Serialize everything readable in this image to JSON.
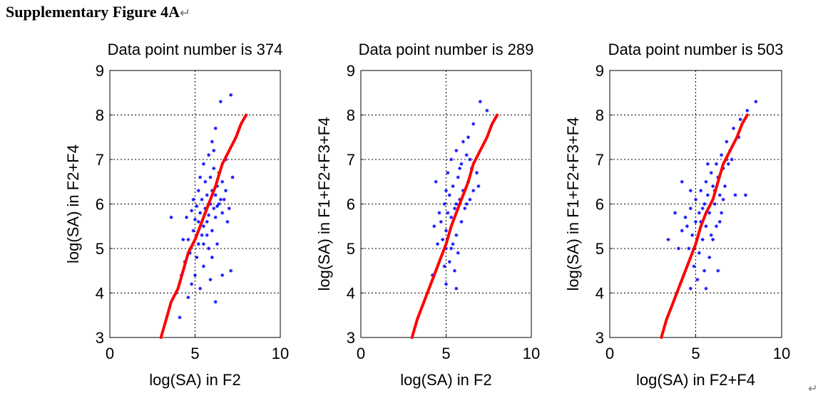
{
  "figure": {
    "title": "Supplementary Figure 4A",
    "paragraph_mark": "↵",
    "end_mark": "↵"
  },
  "chart_data": [
    {
      "type": "scatter",
      "title": "Data point number is 374",
      "xlabel": "log(SA) in F2",
      "ylabel": "log(SA) in F2+F4",
      "xlim": [
        0,
        10
      ],
      "ylim": [
        3,
        9
      ],
      "xticks": [
        0,
        5,
        10
      ],
      "yticks": [
        3,
        4,
        5,
        6,
        7,
        8,
        9
      ],
      "grid": true,
      "marker_color": "#1010ff",
      "line_color": "#ff0000",
      "point_count": 374,
      "points": [
        [
          7.1,
          8.45
        ],
        [
          6.5,
          8.3
        ],
        [
          6.2,
          7.7
        ],
        [
          6.0,
          7.4
        ],
        [
          5.8,
          7.1
        ],
        [
          5.5,
          6.9
        ],
        [
          6.1,
          6.8
        ],
        [
          6.4,
          6.7
        ],
        [
          5.9,
          6.6
        ],
        [
          6.6,
          6.5
        ],
        [
          5.6,
          6.5
        ],
        [
          6.3,
          6.4
        ],
        [
          5.2,
          6.3
        ],
        [
          6.0,
          6.3
        ],
        [
          6.8,
          6.3
        ],
        [
          5.7,
          6.2
        ],
        [
          6.2,
          6.2
        ],
        [
          5.4,
          6.1
        ],
        [
          6.5,
          6.1
        ],
        [
          5.9,
          6.0
        ],
        [
          5.1,
          5.95
        ],
        [
          6.3,
          5.95
        ],
        [
          5.6,
          5.9
        ],
        [
          6.1,
          5.9
        ],
        [
          4.8,
          5.85
        ],
        [
          5.3,
          5.8
        ],
        [
          6.6,
          5.8
        ],
        [
          5.8,
          5.75
        ],
        [
          4.5,
          5.7
        ],
        [
          6.2,
          5.7
        ],
        [
          5.0,
          5.65
        ],
        [
          5.7,
          5.6
        ],
        [
          3.6,
          5.7
        ],
        [
          6.9,
          5.6
        ],
        [
          5.5,
          5.5
        ],
        [
          4.9,
          5.4
        ],
        [
          6.0,
          5.4
        ],
        [
          5.4,
          5.3
        ],
        [
          4.6,
          5.2
        ],
        [
          5.2,
          5.1
        ],
        [
          6.3,
          5.1
        ],
        [
          5.8,
          5.0
        ],
        [
          4.7,
          4.9
        ],
        [
          5.1,
          4.8
        ],
        [
          6.0,
          4.8
        ],
        [
          4.4,
          4.7
        ],
        [
          5.5,
          4.6
        ],
        [
          7.1,
          4.5
        ],
        [
          4.2,
          4.4
        ],
        [
          6.6,
          4.4
        ],
        [
          4.8,
          4.2
        ],
        [
          5.3,
          4.1
        ],
        [
          3.9,
          4.0
        ],
        [
          4.6,
          3.9
        ],
        [
          6.2,
          3.8
        ],
        [
          4.1,
          3.45
        ],
        [
          7.0,
          5.9
        ],
        [
          7.2,
          6.6
        ],
        [
          6.8,
          7.0
        ],
        [
          6.1,
          7.2
        ],
        [
          5.3,
          6.6
        ],
        [
          4.9,
          6.1
        ],
        [
          5.5,
          5.1
        ],
        [
          5.0,
          4.4
        ],
        [
          5.9,
          4.3
        ],
        [
          4.3,
          5.2
        ],
        [
          6.4,
          6.0
        ],
        [
          5.7,
          5.3
        ],
        [
          6.7,
          6.1
        ],
        [
          5.2,
          5.6
        ]
      ],
      "fit_line": [
        [
          3.0,
          3.0
        ],
        [
          3.3,
          3.4
        ],
        [
          3.6,
          3.8
        ],
        [
          4.0,
          4.1
        ],
        [
          4.3,
          4.5
        ],
        [
          4.6,
          4.9
        ],
        [
          5.0,
          5.2
        ],
        [
          5.3,
          5.5
        ],
        [
          5.6,
          5.8
        ],
        [
          5.9,
          6.1
        ],
        [
          6.2,
          6.4
        ],
        [
          6.6,
          6.9
        ],
        [
          7.0,
          7.2
        ],
        [
          7.4,
          7.5
        ],
        [
          7.7,
          7.8
        ],
        [
          8.0,
          8.0
        ]
      ]
    },
    {
      "type": "scatter",
      "title": "Data point number is 289",
      "xlabel": "log(SA) in F2",
      "ylabel": "log(SA) in F1+F2+F3+F4",
      "xlim": [
        0,
        10
      ],
      "ylim": [
        3,
        9
      ],
      "xticks": [
        0,
        5,
        10
      ],
      "yticks": [
        3,
        4,
        5,
        6,
        7,
        8,
        9
      ],
      "grid": true,
      "marker_color": "#1010ff",
      "line_color": "#ff0000",
      "point_count": 289,
      "points": [
        [
          7.0,
          8.3
        ],
        [
          7.4,
          8.1
        ],
        [
          6.6,
          7.8
        ],
        [
          6.3,
          7.5
        ],
        [
          6.0,
          7.4
        ],
        [
          5.6,
          7.2
        ],
        [
          6.2,
          7.1
        ],
        [
          5.3,
          7.0
        ],
        [
          5.9,
          6.9
        ],
        [
          6.5,
          6.8
        ],
        [
          5.1,
          6.7
        ],
        [
          5.7,
          6.6
        ],
        [
          6.3,
          6.5
        ],
        [
          4.4,
          6.5
        ],
        [
          5.4,
          6.4
        ],
        [
          6.0,
          6.3
        ],
        [
          6.6,
          6.3
        ],
        [
          5.2,
          6.2
        ],
        [
          5.8,
          6.1
        ],
        [
          6.4,
          6.1
        ],
        [
          4.9,
          6.0
        ],
        [
          5.5,
          5.9
        ],
        [
          6.1,
          5.9
        ],
        [
          4.6,
          5.8
        ],
        [
          5.3,
          5.7
        ],
        [
          5.9,
          5.6
        ],
        [
          4.3,
          5.5
        ],
        [
          5.0,
          5.4
        ],
        [
          5.6,
          5.3
        ],
        [
          4.8,
          5.2
        ],
        [
          5.4,
          5.1
        ],
        [
          5.0,
          5.0
        ],
        [
          5.7,
          4.9
        ],
        [
          5.2,
          4.7
        ],
        [
          4.9,
          4.6
        ],
        [
          5.5,
          4.5
        ],
        [
          4.2,
          4.4
        ],
        [
          5.0,
          4.2
        ],
        [
          5.6,
          4.1
        ],
        [
          6.8,
          6.7
        ],
        [
          6.4,
          7.0
        ],
        [
          5.8,
          6.8
        ],
        [
          5.0,
          6.3
        ],
        [
          4.7,
          5.6
        ],
        [
          5.3,
          5.0
        ],
        [
          6.2,
          6.0
        ],
        [
          5.6,
          6.0
        ],
        [
          6.9,
          6.4
        ],
        [
          4.5,
          5.1
        ],
        [
          5.1,
          5.8
        ]
      ],
      "fit_line": [
        [
          3.0,
          3.0
        ],
        [
          3.3,
          3.4
        ],
        [
          3.6,
          3.7
        ],
        [
          4.0,
          4.1
        ],
        [
          4.3,
          4.4
        ],
        [
          4.7,
          4.8
        ],
        [
          5.0,
          5.1
        ],
        [
          5.3,
          5.5
        ],
        [
          5.6,
          5.8
        ],
        [
          6.0,
          6.2
        ],
        [
          6.3,
          6.5
        ],
        [
          6.6,
          6.9
        ],
        [
          7.0,
          7.2
        ],
        [
          7.4,
          7.5
        ],
        [
          7.7,
          7.8
        ],
        [
          8.0,
          8.0
        ]
      ]
    },
    {
      "type": "scatter",
      "title": "Data point number is 503",
      "xlabel": "log(SA) in F2+F4",
      "ylabel": "log(SA) in F1+F2+F3+F4",
      "xlim": [
        0,
        10
      ],
      "ylim": [
        3,
        9
      ],
      "xticks": [
        0,
        5,
        10
      ],
      "yticks": [
        3,
        4,
        5,
        6,
        7,
        8,
        9
      ],
      "grid": true,
      "marker_color": "#1010ff",
      "line_color": "#ff0000",
      "point_count": 503,
      "points": [
        [
          8.5,
          8.3
        ],
        [
          8.0,
          8.1
        ],
        [
          7.6,
          7.9
        ],
        [
          7.2,
          7.7
        ],
        [
          6.8,
          7.4
        ],
        [
          7.0,
          7.2
        ],
        [
          6.5,
          7.1
        ],
        [
          6.2,
          6.9
        ],
        [
          6.6,
          6.8
        ],
        [
          5.9,
          6.7
        ],
        [
          6.3,
          6.6
        ],
        [
          5.6,
          6.5
        ],
        [
          6.0,
          6.4
        ],
        [
          6.7,
          6.4
        ],
        [
          5.3,
          6.3
        ],
        [
          5.7,
          6.2
        ],
        [
          6.4,
          6.2
        ],
        [
          5.0,
          6.1
        ],
        [
          5.5,
          6.0
        ],
        [
          6.1,
          6.0
        ],
        [
          4.7,
          5.9
        ],
        [
          5.2,
          5.8
        ],
        [
          5.8,
          5.8
        ],
        [
          6.5,
          5.8
        ],
        [
          4.4,
          5.7
        ],
        [
          5.0,
          5.6
        ],
        [
          5.6,
          5.5
        ],
        [
          6.2,
          5.5
        ],
        [
          4.2,
          5.4
        ],
        [
          4.8,
          5.3
        ],
        [
          5.4,
          5.2
        ],
        [
          6.0,
          5.2
        ],
        [
          3.4,
          5.2
        ],
        [
          4.6,
          5.0
        ],
        [
          5.2,
          4.9
        ],
        [
          5.8,
          4.8
        ],
        [
          4.9,
          4.6
        ],
        [
          5.5,
          4.5
        ],
        [
          6.3,
          4.5
        ],
        [
          5.1,
          4.3
        ],
        [
          5.6,
          4.1
        ],
        [
          4.7,
          4.1
        ],
        [
          4.2,
          6.5
        ],
        [
          4.7,
          6.3
        ],
        [
          3.8,
          5.8
        ],
        [
          7.3,
          6.2
        ],
        [
          7.9,
          6.2
        ],
        [
          6.9,
          6.9
        ],
        [
          7.5,
          7.5
        ],
        [
          5.9,
          5.3
        ],
        [
          5.3,
          5.6
        ],
        [
          6.6,
          6.1
        ],
        [
          4.5,
          5.5
        ],
        [
          6.8,
          7.0
        ],
        [
          7.1,
          7.0
        ],
        [
          5.7,
          6.9
        ],
        [
          6.1,
          6.3
        ],
        [
          5.4,
          5.9
        ],
        [
          4.0,
          5.0
        ],
        [
          6.4,
          5.6
        ]
      ],
      "fit_line": [
        [
          3.0,
          3.0
        ],
        [
          3.3,
          3.4
        ],
        [
          3.6,
          3.7
        ],
        [
          4.0,
          4.1
        ],
        [
          4.3,
          4.4
        ],
        [
          4.7,
          4.8
        ],
        [
          5.0,
          5.1
        ],
        [
          5.3,
          5.5
        ],
        [
          5.6,
          5.8
        ],
        [
          6.0,
          6.1
        ],
        [
          6.3,
          6.5
        ],
        [
          6.6,
          6.9
        ],
        [
          7.0,
          7.2
        ],
        [
          7.4,
          7.5
        ],
        [
          7.7,
          7.8
        ],
        [
          8.0,
          8.0
        ]
      ]
    }
  ]
}
